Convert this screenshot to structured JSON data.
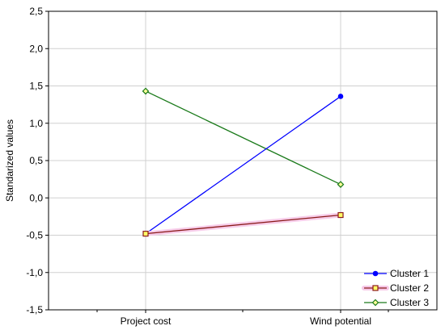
{
  "chart_data": {
    "type": "line",
    "categories": [
      "Project cost",
      "Wind potential"
    ],
    "ylabel": "Standarized values",
    "ylim": [
      -1.5,
      2.5
    ],
    "yticks": [
      "2,5",
      "2,0",
      "1,5",
      "1,0",
      "0,5",
      "0,0",
      "-0,5",
      "-1,0",
      "-1,5"
    ],
    "ytick_values": [
      2.5,
      2.0,
      1.5,
      1.0,
      0.5,
      0.0,
      -0.5,
      -1.0,
      -1.5
    ],
    "grid": true,
    "legend_position": "bottom-right",
    "series": [
      {
        "name": "Cluster 1",
        "values": [
          -0.48,
          1.36
        ],
        "color": "#0000ff",
        "marker": "circle"
      },
      {
        "name": "Cluster 2",
        "values": [
          -0.48,
          -0.23
        ],
        "color": "#8b1a1a",
        "marker": "square"
      },
      {
        "name": "Cluster 3",
        "values": [
          1.43,
          0.18
        ],
        "color": "#1a7a1a",
        "marker": "diamond"
      }
    ]
  }
}
